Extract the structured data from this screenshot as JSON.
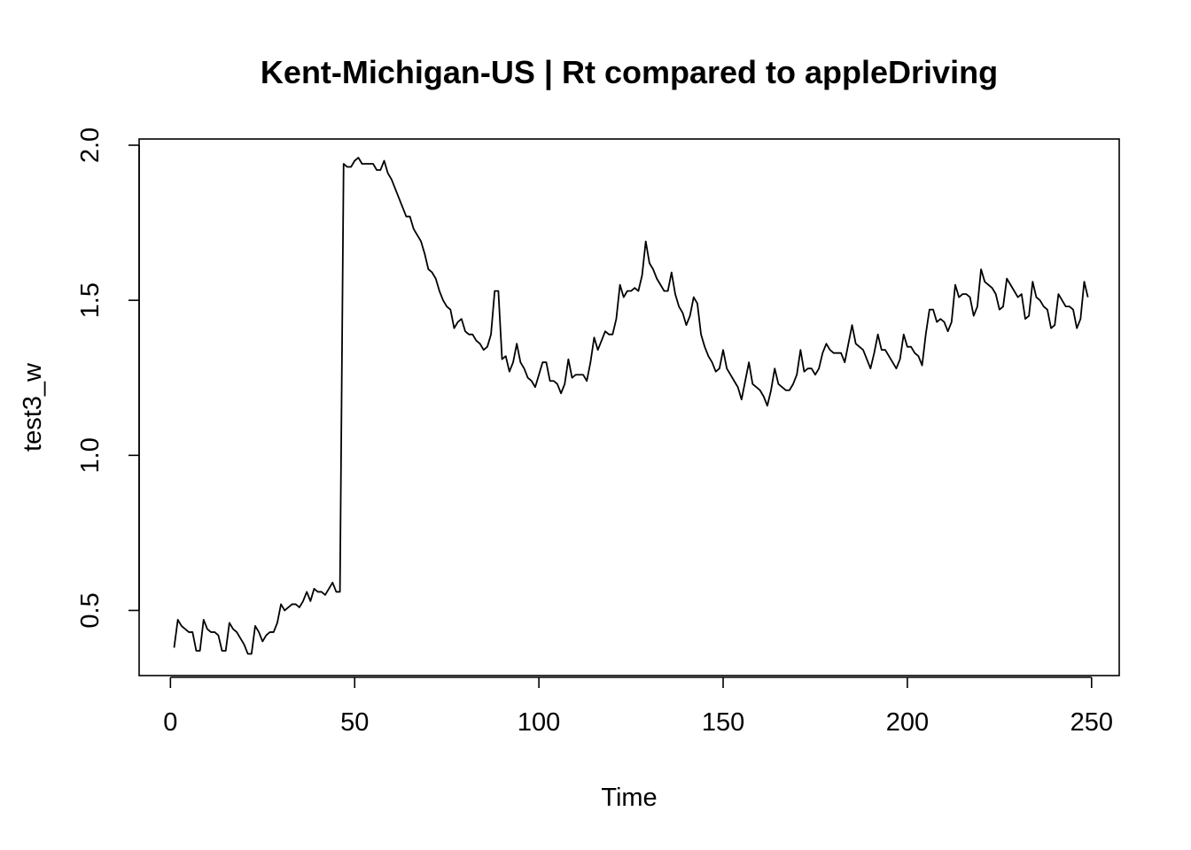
{
  "chart_data": {
    "type": "line",
    "title": "Kent-Michigan-US | Rt compared to appleDriving",
    "xlabel": "Time",
    "ylabel": "test3_w",
    "xlim": [
      -8.5,
      257.5
    ],
    "ylim": [
      0.29,
      2.02
    ],
    "x_ticks": [
      0,
      50,
      100,
      150,
      200,
      250
    ],
    "y_ticks": [
      0.5,
      1.0,
      1.5,
      2.0
    ],
    "x_tick_labels": [
      "0",
      "50",
      "100",
      "150",
      "200",
      "250"
    ],
    "y_tick_labels": [
      "0.5",
      "1.0",
      "1.5",
      "2.0"
    ],
    "grid": false,
    "series": [
      {
        "name": "test3_w",
        "color": "#000000",
        "x_start": 1,
        "values": [
          0.38,
          0.47,
          0.45,
          0.44,
          0.43,
          0.43,
          0.37,
          0.37,
          0.47,
          0.44,
          0.43,
          0.43,
          0.42,
          0.37,
          0.37,
          0.46,
          0.44,
          0.43,
          0.41,
          0.39,
          0.36,
          0.36,
          0.45,
          0.43,
          0.4,
          0.42,
          0.43,
          0.43,
          0.46,
          0.52,
          0.5,
          0.51,
          0.52,
          0.52,
          0.51,
          0.53,
          0.56,
          0.53,
          0.57,
          0.56,
          0.56,
          0.55,
          0.57,
          0.59,
          0.56,
          0.56,
          1.94,
          1.93,
          1.93,
          1.95,
          1.96,
          1.94,
          1.94,
          1.94,
          1.94,
          1.92,
          1.92,
          1.95,
          1.91,
          1.89,
          1.86,
          1.83,
          1.8,
          1.77,
          1.77,
          1.73,
          1.71,
          1.69,
          1.65,
          1.6,
          1.59,
          1.57,
          1.53,
          1.5,
          1.48,
          1.47,
          1.41,
          1.43,
          1.44,
          1.4,
          1.39,
          1.39,
          1.37,
          1.36,
          1.34,
          1.35,
          1.39,
          1.53,
          1.53,
          1.31,
          1.32,
          1.27,
          1.3,
          1.36,
          1.3,
          1.28,
          1.25,
          1.24,
          1.22,
          1.26,
          1.3,
          1.3,
          1.24,
          1.24,
          1.23,
          1.2,
          1.23,
          1.31,
          1.25,
          1.26,
          1.26,
          1.26,
          1.24,
          1.3,
          1.38,
          1.34,
          1.37,
          1.4,
          1.39,
          1.39,
          1.44,
          1.55,
          1.51,
          1.53,
          1.53,
          1.54,
          1.53,
          1.58,
          1.69,
          1.62,
          1.6,
          1.57,
          1.55,
          1.53,
          1.53,
          1.59,
          1.52,
          1.48,
          1.46,
          1.42,
          1.45,
          1.51,
          1.49,
          1.39,
          1.35,
          1.32,
          1.3,
          1.27,
          1.28,
          1.34,
          1.28,
          1.26,
          1.24,
          1.22,
          1.18,
          1.24,
          1.3,
          1.23,
          1.22,
          1.21,
          1.19,
          1.16,
          1.21,
          1.28,
          1.23,
          1.22,
          1.21,
          1.21,
          1.23,
          1.26,
          1.34,
          1.27,
          1.28,
          1.28,
          1.26,
          1.28,
          1.33,
          1.36,
          1.34,
          1.33,
          1.33,
          1.33,
          1.3,
          1.36,
          1.42,
          1.36,
          1.35,
          1.34,
          1.31,
          1.28,
          1.33,
          1.39,
          1.34,
          1.34,
          1.32,
          1.3,
          1.28,
          1.31,
          1.39,
          1.35,
          1.35,
          1.33,
          1.32,
          1.29,
          1.39,
          1.47,
          1.47,
          1.43,
          1.44,
          1.43,
          1.4,
          1.43,
          1.55,
          1.51,
          1.52,
          1.52,
          1.51,
          1.45,
          1.48,
          1.6,
          1.56,
          1.55,
          1.54,
          1.52,
          1.47,
          1.48,
          1.57,
          1.55,
          1.53,
          1.51,
          1.52,
          1.44,
          1.45,
          1.56,
          1.51,
          1.5,
          1.48,
          1.47,
          1.41,
          1.42,
          1.52,
          1.5,
          1.48,
          1.48,
          1.47,
          1.41,
          1.44,
          1.56,
          1.51
        ]
      }
    ]
  }
}
